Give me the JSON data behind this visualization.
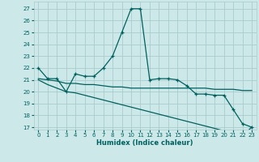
{
  "x": [
    0,
    1,
    2,
    3,
    4,
    5,
    6,
    7,
    8,
    9,
    10,
    11,
    12,
    13,
    14,
    15,
    16,
    17,
    18,
    19,
    20,
    21,
    22,
    23
  ],
  "y_humidex": [
    22.0,
    21.1,
    21.1,
    20.0,
    21.5,
    21.3,
    21.3,
    22.0,
    23.0,
    25.0,
    27.0,
    27.0,
    21.0,
    21.1,
    21.1,
    21.0,
    20.5,
    19.8,
    19.8,
    19.7,
    19.7,
    18.5,
    17.3,
    17.0
  ],
  "y_upper": [
    21.1,
    21.0,
    20.9,
    20.7,
    20.7,
    20.6,
    20.6,
    20.5,
    20.4,
    20.4,
    20.3,
    20.3,
    20.3,
    20.3,
    20.3,
    20.3,
    20.3,
    20.3,
    20.3,
    20.2,
    20.2,
    20.2,
    20.1,
    20.1
  ],
  "y_lower": [
    21.0,
    20.6,
    20.3,
    20.0,
    19.9,
    19.7,
    19.5,
    19.3,
    19.1,
    18.9,
    18.7,
    18.5,
    18.3,
    18.1,
    17.9,
    17.7,
    17.5,
    17.3,
    17.1,
    16.9,
    16.7,
    16.5,
    16.3,
    17.0
  ],
  "bg_color": "#cce8e8",
  "grid_color": "#aacccc",
  "line_color": "#006060",
  "xlabel": "Humidex (Indice chaleur)",
  "ylabel_ticks": [
    17,
    18,
    19,
    20,
    21,
    22,
    23,
    24,
    25,
    26,
    27
  ],
  "xlim": [
    -0.5,
    23.5
  ],
  "ylim": [
    16.8,
    27.6
  ],
  "xticks": [
    0,
    1,
    2,
    3,
    4,
    5,
    6,
    7,
    8,
    9,
    10,
    11,
    12,
    13,
    14,
    15,
    16,
    17,
    18,
    19,
    20,
    21,
    22,
    23
  ],
  "tick_fontsize": 5,
  "xlabel_fontsize": 6
}
